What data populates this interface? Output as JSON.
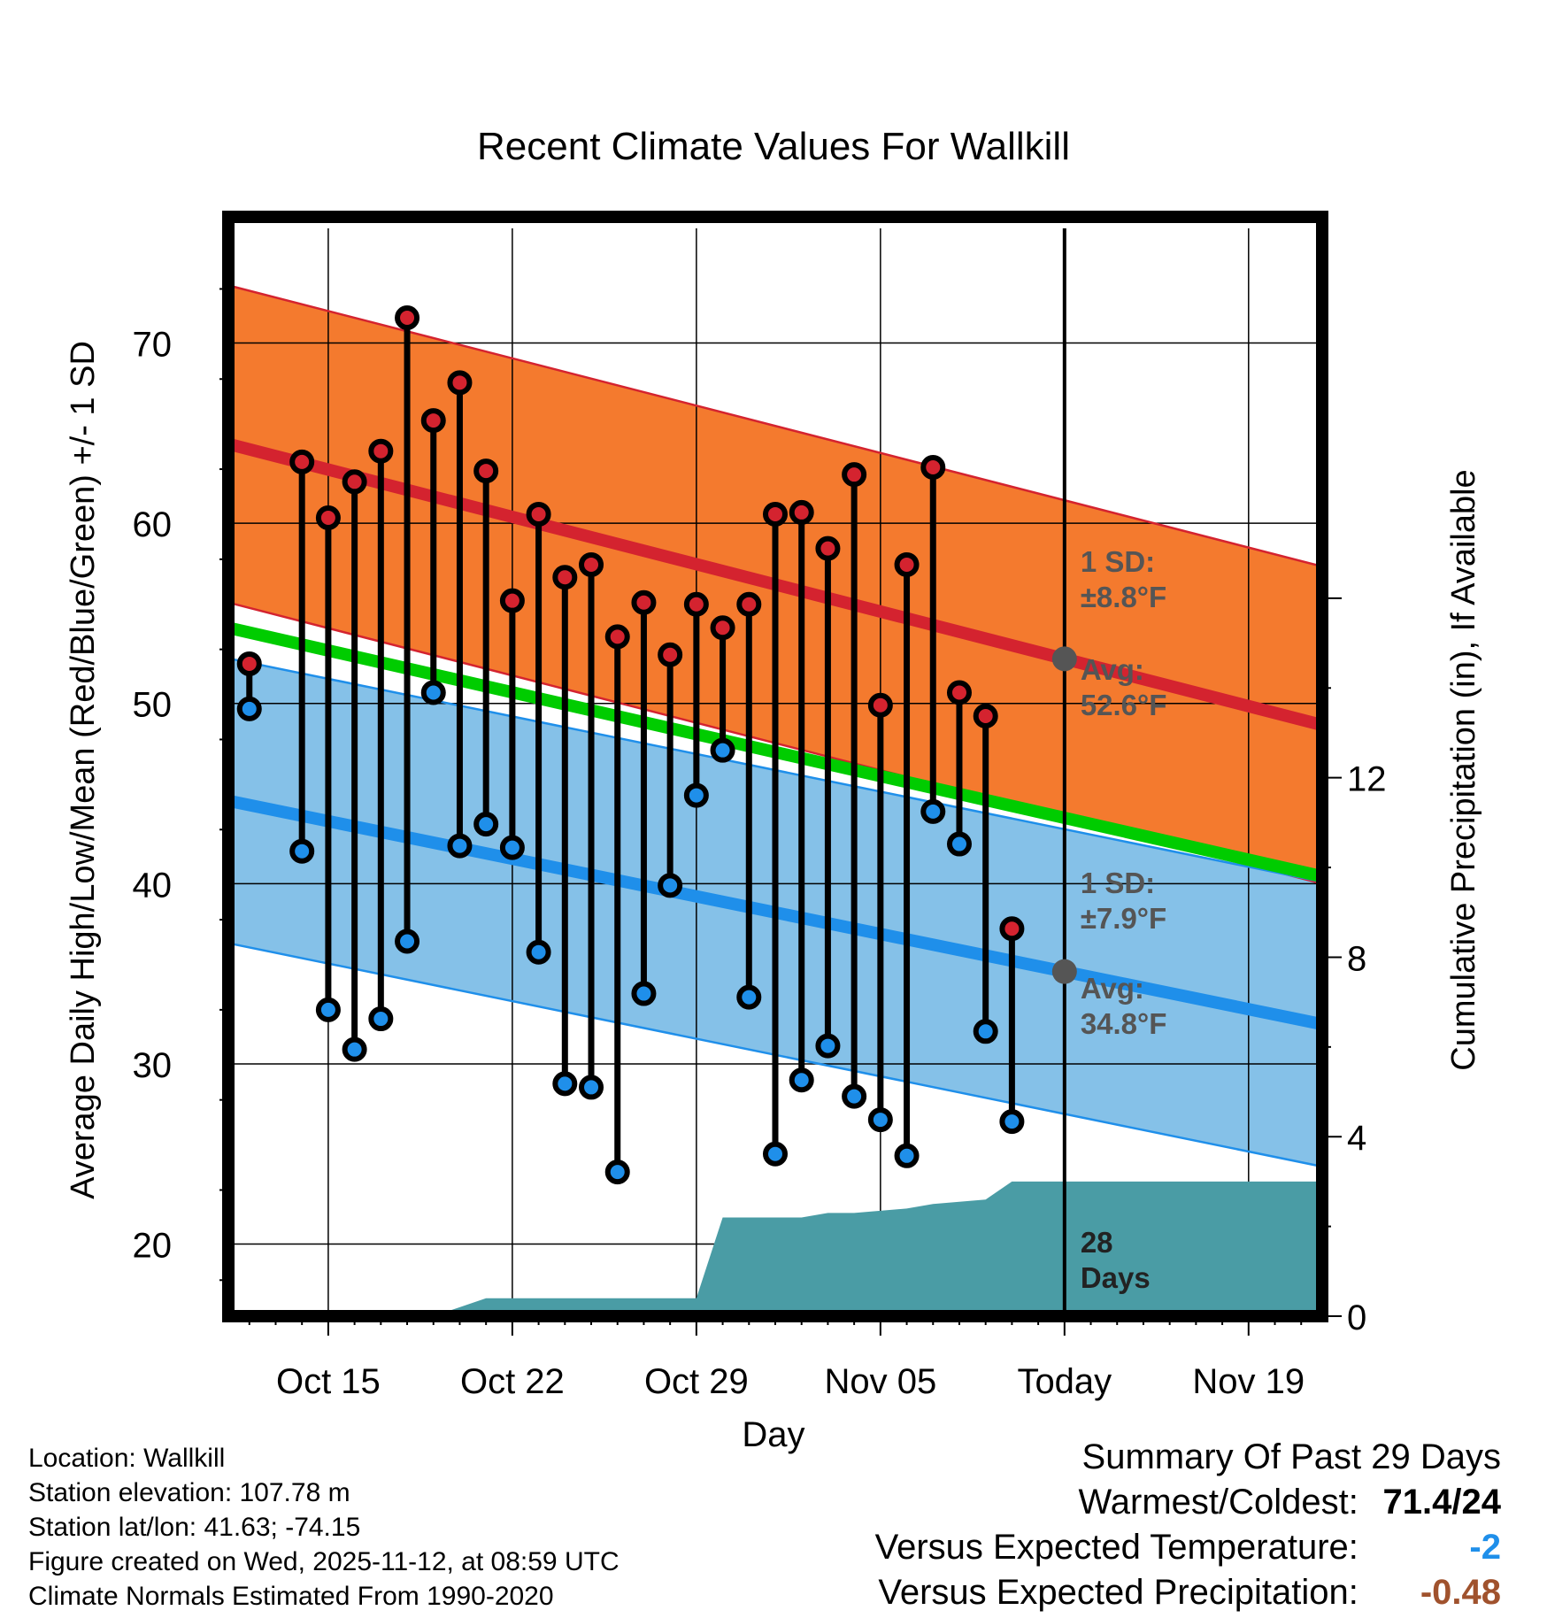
{
  "chart_data": {
    "type": "line",
    "title": "Recent Climate Values For Wallkill",
    "xlabel": "Day",
    "ylabel": "Average Daily High/Low/Mean (Red/Blue/Green) +/- 1 SD",
    "y2label": "Cumulative Precipitation (in), If Available",
    "ylim": [
      16,
      77
    ],
    "y2lim": [
      0,
      24.5
    ],
    "xlim": [
      -0.8,
      40.8
    ],
    "grid": true,
    "x_ticks": [
      {
        "day": 3,
        "label": "Oct 15"
      },
      {
        "day": 10,
        "label": "Oct 22"
      },
      {
        "day": 17,
        "label": "Oct 29"
      },
      {
        "day": 24,
        "label": "Nov 05"
      },
      {
        "day": 31,
        "label": "Today"
      },
      {
        "day": 38,
        "label": "Nov 19"
      }
    ],
    "y_ticks": [
      20,
      30,
      40,
      50,
      60,
      70
    ],
    "y2_ticks": [
      0,
      4,
      8,
      12
    ],
    "today_day": 31,
    "normals": {
      "high_avg": [
        64.4,
        48.8
      ],
      "high_sd": 8.8,
      "low_avg": [
        44.6,
        32.2
      ],
      "low_sd": 7.9,
      "mean_avg": [
        54.2,
        40.4
      ]
    },
    "series": [
      {
        "name": "Daily High",
        "color": "#d4232f",
        "values": [
          52.2,
          null,
          63.4,
          60.3,
          62.3,
          64.0,
          71.4,
          65.7,
          67.8,
          62.9,
          55.7,
          60.5,
          57.0,
          57.7,
          53.7,
          55.6,
          52.7,
          55.5,
          54.2,
          55.5,
          60.5,
          60.6,
          58.6,
          62.7,
          49.9,
          57.7,
          63.1,
          50.6,
          49.3,
          37.5
        ]
      },
      {
        "name": "Daily Low",
        "color": "#1f8fea",
        "values": [
          49.7,
          null,
          41.8,
          33.0,
          30.8,
          32.5,
          36.8,
          50.6,
          42.1,
          43.3,
          42.0,
          36.2,
          28.9,
          28.7,
          24.0,
          33.9,
          39.9,
          44.9,
          47.4,
          33.7,
          25.0,
          29.1,
          31.0,
          28.2,
          26.9,
          24.9,
          44.0,
          42.2,
          31.8,
          26.8
        ]
      },
      {
        "name": "Cumulative Precipitation",
        "color": "#4a9ca5",
        "points": [
          [
            7,
            0.0
          ],
          [
            8,
            0.2
          ],
          [
            9,
            0.4
          ],
          [
            17,
            0.4
          ],
          [
            18,
            2.2
          ],
          [
            21,
            2.2
          ],
          [
            22,
            2.3
          ],
          [
            23,
            2.3
          ],
          [
            25,
            2.4
          ],
          [
            26,
            2.5
          ],
          [
            28,
            2.6
          ],
          [
            29,
            3.0
          ],
          [
            40.8,
            3.0
          ]
        ]
      }
    ],
    "annotations": [
      {
        "text1": "1 SD:",
        "text2": "±8.8°F"
      },
      {
        "text1": "Avg:",
        "text2": "52.6°F"
      },
      {
        "text1": "1 SD:",
        "text2": "±7.9°F"
      },
      {
        "text1": "Avg:",
        "text2": "34.8°F"
      },
      {
        "text1": "28",
        "text2": "Days"
      }
    ]
  },
  "info": {
    "location": "Location: Wallkill",
    "elevation": "Station elevation: 107.78 m",
    "latlon": "Station lat/lon: 41.63; -74.15",
    "created": "Figure created on Wed, 2025-11-12, at 08:59 UTC",
    "normals": "Climate Normals Estimated From 1990-2020"
  },
  "summary": {
    "title": "Summary Of Past 29 Days",
    "warm_label": "Warmest/Coldest:",
    "warm_value": "71.4/24",
    "temp_label": "Versus Expected Temperature:",
    "temp_value": "-2",
    "temp_color": "#1f8fea",
    "precip_label": "Versus Expected Precipitation:",
    "precip_value": "-0.48",
    "precip_color": "#a0522d"
  },
  "colors": {
    "high_band": "#f47a2e",
    "high_line": "#d4232f",
    "low_band": "#85c1e8",
    "low_line": "#1f8fea",
    "mean_line": "#00cc00",
    "precip": "#4a9ca5",
    "annotation": "#555555"
  }
}
